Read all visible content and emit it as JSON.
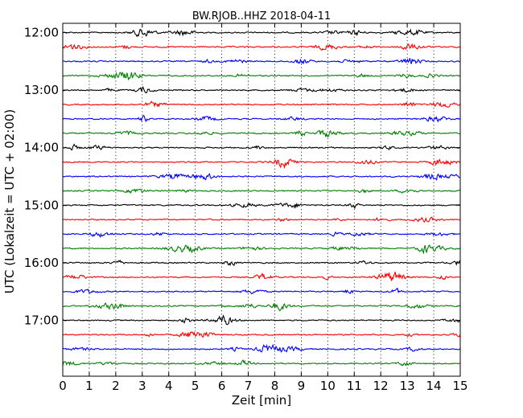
{
  "chart_data": {
    "type": "line",
    "title": "BW.RJOB..HHZ 2018-04-11",
    "xlabel": "Zeit  [min]",
    "ylabel": "UTC (Lokalzeit = UTC + 02:00)",
    "xlim": [
      0,
      15
    ],
    "x_ticks": [
      "0",
      "1",
      "2",
      "3",
      "4",
      "5",
      "6",
      "7",
      "8",
      "9",
      "10",
      "11",
      "12",
      "13",
      "14",
      "15"
    ],
    "y_ticks": [
      "12:00",
      "13:00",
      "14:00",
      "15:00",
      "16:00",
      "17:00"
    ],
    "trace_start_times": [
      "12:00",
      "12:15",
      "12:30",
      "12:45",
      "13:00",
      "13:15",
      "13:30",
      "13:45",
      "14:00",
      "14:15",
      "14:30",
      "14:45",
      "15:00",
      "15:15",
      "15:30",
      "15:45",
      "16:00",
      "16:15",
      "16:30",
      "16:45",
      "17:00",
      "17:15",
      "17:30",
      "17:45"
    ],
    "trace_color_cycle": [
      "#000000",
      "#ff0000",
      "#0000ff",
      "#008000"
    ],
    "grid": "vertical dotted at each minute",
    "representative_amplitude_deviation": 0.12
  }
}
